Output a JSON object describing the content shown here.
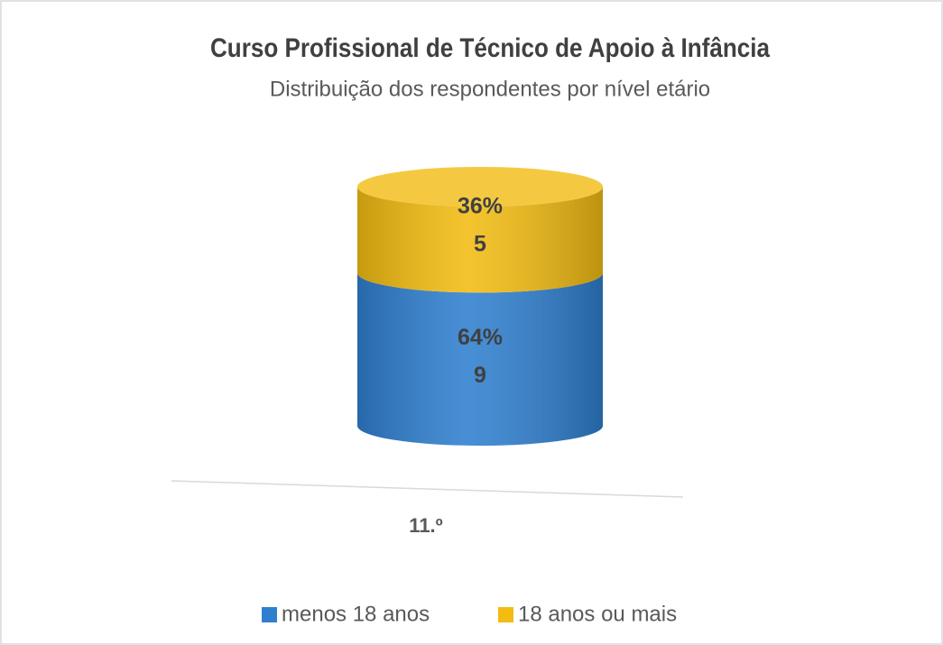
{
  "chart_data": {
    "type": "cylinder",
    "title": "Curso Profissional de Técnico de Apoio à Infância",
    "subtitle": "Distribuição dos respondentes por nível etário",
    "categories": [
      "11.º"
    ],
    "series": [
      {
        "name": "menos 18 anos",
        "color": "#2f7fcf",
        "values": [
          64
        ],
        "value_labels": [
          "64%"
        ],
        "counts": [
          9
        ]
      },
      {
        "name": "18 anos ou mais",
        "color": "#f2bc12",
        "values": [
          36
        ],
        "value_labels": [
          "36%"
        ],
        "counts": [
          5
        ]
      }
    ],
    "legend": "bottom"
  }
}
